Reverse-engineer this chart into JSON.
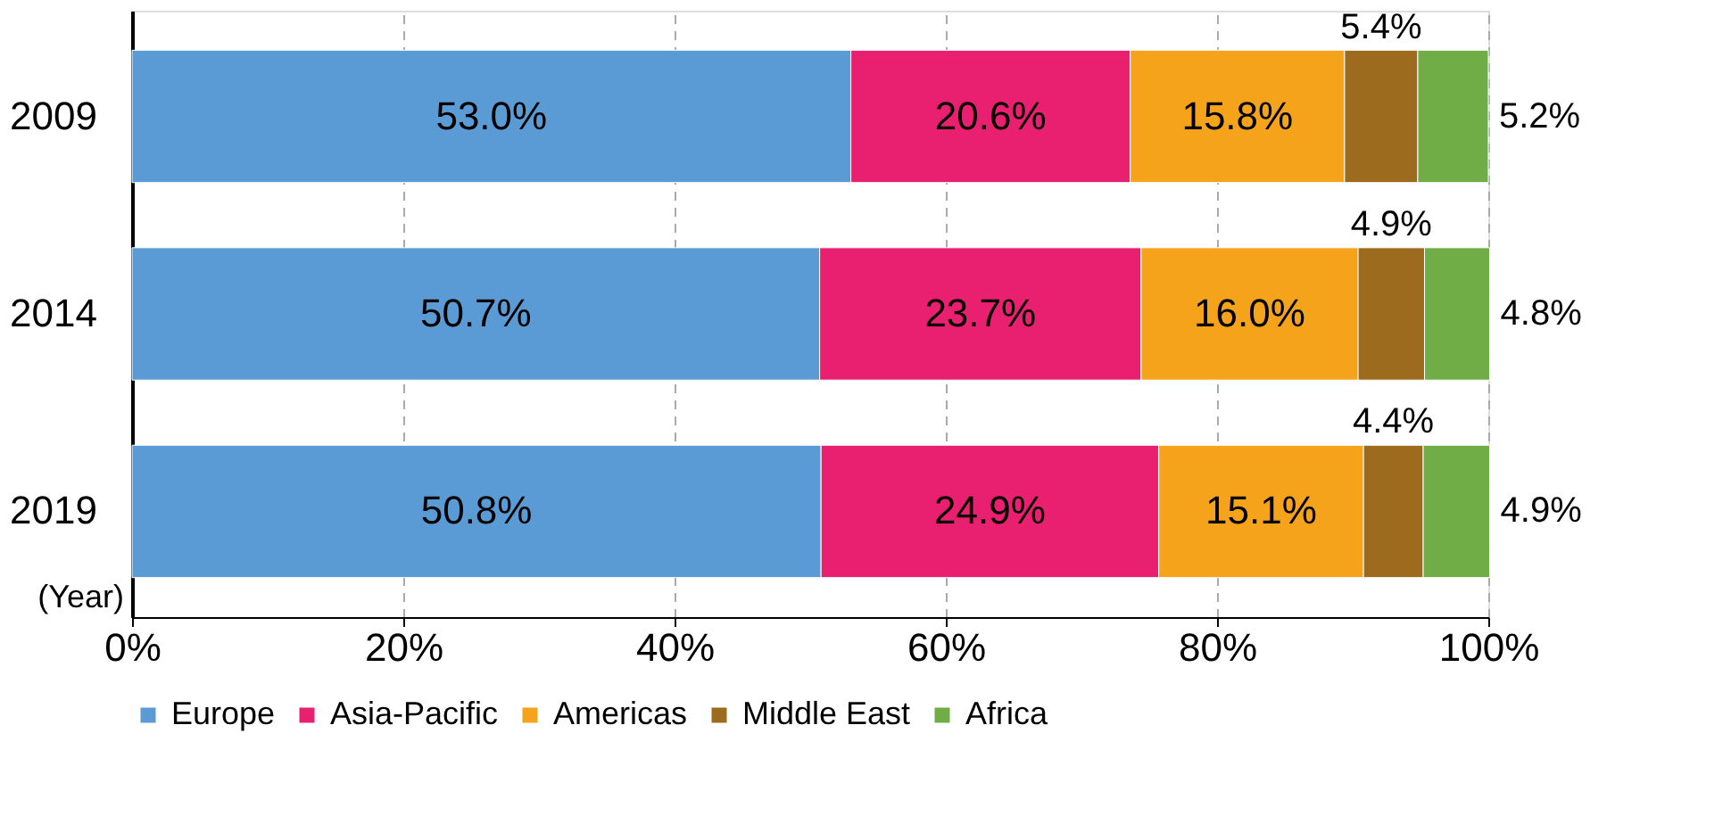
{
  "chart_data": {
    "type": "bar",
    "orientation": "horizontal",
    "stacked": true,
    "ylabel": "(Year)",
    "categories": [
      "2009",
      "2014",
      "2019"
    ],
    "series": [
      {
        "name": "Europe",
        "color": "#5b9bd5",
        "values": [
          53.0,
          50.7,
          50.8
        ],
        "value_labels": [
          "53.0%",
          "50.7%",
          "50.8%"
        ]
      },
      {
        "name": "Asia-Pacific",
        "color": "#e8206f",
        "values": [
          20.6,
          23.7,
          24.9
        ],
        "value_labels": [
          "20.6%",
          "23.7%",
          "24.9%"
        ]
      },
      {
        "name": "Americas",
        "color": "#f5a31a",
        "values": [
          15.8,
          16.0,
          15.1
        ],
        "value_labels": [
          "15.8%",
          "16.0%",
          "15.1%"
        ]
      },
      {
        "name": "Middle East",
        "color": "#9c6b1e",
        "values": [
          5.4,
          4.9,
          4.4
        ],
        "value_labels": [
          "5.4%",
          "4.9%",
          "4.4%"
        ]
      },
      {
        "name": "Africa",
        "color": "#70ad47",
        "values": [
          5.2,
          4.8,
          4.9
        ],
        "value_labels": [
          "5.2%",
          "4.8%",
          "4.9%"
        ]
      }
    ],
    "xlim": [
      0,
      100
    ],
    "xticks": [
      {
        "value": 0,
        "label": "0%"
      },
      {
        "value": 20,
        "label": "20%"
      },
      {
        "value": 40,
        "label": "40%"
      },
      {
        "value": 60,
        "label": "60%"
      },
      {
        "value": 80,
        "label": "80%"
      },
      {
        "value": 100,
        "label": "100%"
      }
    ],
    "grid": "x",
    "legend": "bottom"
  }
}
